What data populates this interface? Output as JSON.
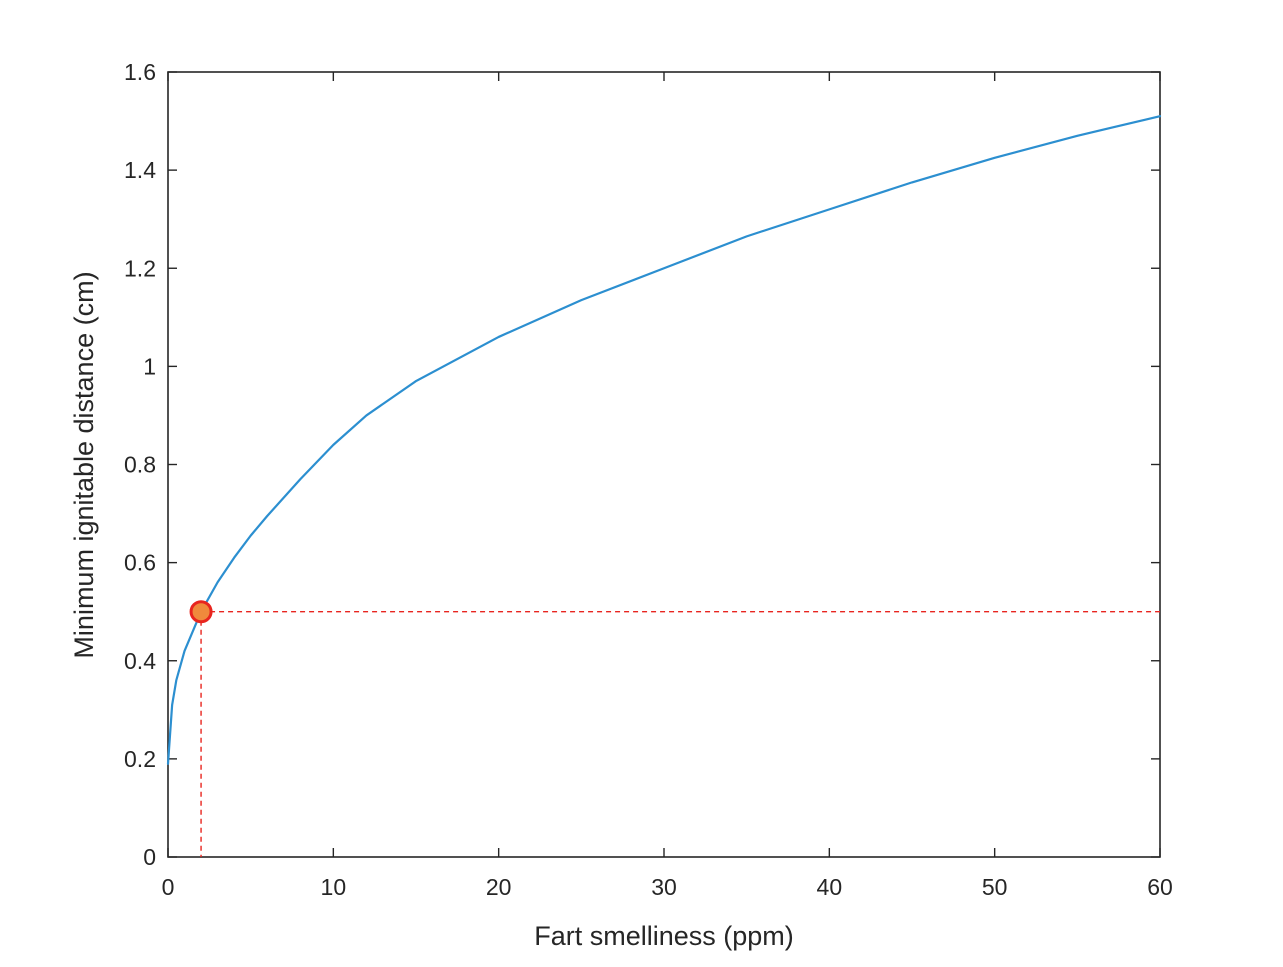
{
  "chart_data": {
    "type": "line",
    "title": "",
    "xlabel": "Fart smelliness (ppm)",
    "ylabel": "Minimum ignitable distance (cm)",
    "xlim": [
      0,
      60
    ],
    "ylim": [
      0,
      1.6
    ],
    "xticks": [
      0,
      10,
      20,
      30,
      40,
      50,
      60
    ],
    "xtick_labels": [
      "0",
      "10",
      "20",
      "30",
      "40",
      "50",
      "60"
    ],
    "yticks": [
      0,
      0.2,
      0.4,
      0.6,
      0.8,
      1.0,
      1.2,
      1.4,
      1.6
    ],
    "ytick_labels": [
      "0",
      "0.2",
      "0.4",
      "0.6",
      "0.8",
      "1",
      "1.2",
      "1.4",
      "1.6"
    ],
    "grid": false,
    "box": true,
    "series": [
      {
        "color": "#2c8fd0",
        "x": [
          0,
          0.25,
          0.5,
          1,
          2,
          3,
          4,
          5,
          6,
          8,
          10,
          12,
          15,
          20,
          25,
          30,
          35,
          40,
          45,
          50,
          55,
          60
        ],
        "y": [
          0.19,
          0.31,
          0.36,
          0.42,
          0.5,
          0.56,
          0.61,
          0.655,
          0.695,
          0.77,
          0.84,
          0.9,
          0.97,
          1.06,
          1.135,
          1.2,
          1.265,
          1.32,
          1.375,
          1.425,
          1.47,
          1.51
        ]
      }
    ],
    "highlight_point": {
      "x": 2,
      "y": 0.5,
      "fill": "#f08a3c",
      "stroke": "#e8251f"
    },
    "reference_lines": {
      "color": "#e8251f",
      "style": "dashed",
      "x": 2,
      "y": 0.5
    }
  }
}
